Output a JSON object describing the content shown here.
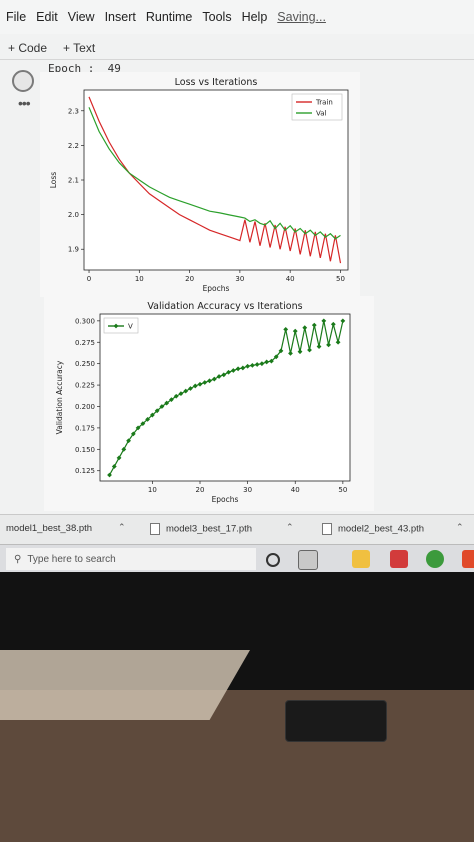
{
  "menu": {
    "items": [
      "File",
      "Edit",
      "View",
      "Insert",
      "Runtime",
      "Tools",
      "Help"
    ],
    "status": "Saving..."
  },
  "toolbar": {
    "code": "+ Code",
    "text": "+ Text"
  },
  "cell": {
    "output_text": "Epoch :  49"
  },
  "chart_data": [
    {
      "type": "line",
      "title": "Loss vs Iterations",
      "xlabel": "Epochs",
      "ylabel": "Loss",
      "xlim": [
        -1,
        51.5
      ],
      "ylim": [
        1.84,
        2.36
      ],
      "xticks": [
        0,
        10,
        20,
        30,
        40,
        50
      ],
      "yticks": [
        1.9,
        2.0,
        2.1,
        2.2,
        2.3
      ],
      "ytick_labels": [
        "1.9",
        "2.0",
        "2.1",
        "2.2",
        "2.3"
      ],
      "legend_position": "upper right",
      "grid": false,
      "series": [
        {
          "name": "Train",
          "color": "#d62728",
          "x": [
            0,
            2,
            4,
            6,
            8,
            10,
            12,
            14,
            16,
            18,
            20,
            22,
            24,
            26,
            28,
            29,
            30,
            31,
            32,
            33,
            34,
            35,
            36,
            37,
            38,
            39,
            40,
            41,
            42,
            43,
            44,
            45,
            46,
            47,
            48,
            49,
            50
          ],
          "y": [
            2.34,
            2.27,
            2.21,
            2.16,
            2.12,
            2.09,
            2.06,
            2.04,
            2.02,
            2.0,
            1.985,
            1.97,
            1.955,
            1.945,
            1.935,
            1.93,
            1.925,
            1.985,
            1.92,
            1.98,
            1.91,
            1.975,
            1.905,
            1.97,
            1.9,
            1.965,
            1.895,
            1.96,
            1.885,
            1.955,
            1.88,
            1.95,
            1.875,
            1.945,
            1.865,
            1.94,
            1.86
          ]
        },
        {
          "name": "Val",
          "color": "#2ca02c",
          "x": [
            0,
            2,
            4,
            6,
            8,
            10,
            12,
            14,
            16,
            18,
            20,
            22,
            24,
            26,
            28,
            29,
            30,
            31,
            32,
            33,
            34,
            35,
            36,
            37,
            38,
            39,
            40,
            41,
            42,
            43,
            44,
            45,
            46,
            47,
            48,
            49,
            50
          ],
          "y": [
            2.31,
            2.24,
            2.19,
            2.15,
            2.12,
            2.1,
            2.08,
            2.065,
            2.05,
            2.04,
            2.03,
            2.02,
            2.01,
            2.005,
            1.999,
            1.996,
            1.993,
            1.99,
            1.98,
            1.985,
            1.975,
            1.97,
            1.982,
            1.96,
            1.975,
            1.955,
            1.968,
            1.95,
            1.96,
            1.945,
            1.955,
            1.94,
            1.95,
            1.935,
            1.945,
            1.93,
            1.94
          ]
        }
      ]
    },
    {
      "type": "line",
      "title": "Validation Accuracy vs Iterations",
      "xlabel": "Epochs",
      "ylabel": "Validation Accuracy",
      "xlim": [
        -1,
        51.5
      ],
      "ylim": [
        0.113,
        0.308
      ],
      "xticks": [
        10,
        20,
        30,
        40,
        50
      ],
      "yticks": [
        0.125,
        0.15,
        0.175,
        0.2,
        0.225,
        0.25,
        0.275,
        0.3
      ],
      "ytick_labels": [
        "0.125",
        "0.150",
        "0.175",
        "0.200",
        "0.225",
        "0.250",
        "0.275",
        "0.300"
      ],
      "legend_position": "upper left",
      "grid": false,
      "series": [
        {
          "name": "V",
          "color": "#1a7a1a",
          "marker": "diamond",
          "x": [
            1,
            2,
            3,
            4,
            5,
            6,
            7,
            8,
            9,
            10,
            11,
            12,
            13,
            14,
            15,
            16,
            17,
            18,
            19,
            20,
            21,
            22,
            23,
            24,
            25,
            26,
            27,
            28,
            29,
            30,
            31,
            32,
            33,
            34,
            35,
            36,
            37,
            38,
            39,
            40,
            41,
            42,
            43,
            44,
            45,
            46,
            47,
            48,
            49,
            50
          ],
          "y": [
            0.12,
            0.13,
            0.14,
            0.15,
            0.16,
            0.168,
            0.175,
            0.18,
            0.185,
            0.19,
            0.195,
            0.2,
            0.204,
            0.208,
            0.212,
            0.215,
            0.218,
            0.221,
            0.224,
            0.226,
            0.228,
            0.23,
            0.232,
            0.235,
            0.237,
            0.24,
            0.242,
            0.244,
            0.245,
            0.247,
            0.248,
            0.249,
            0.25,
            0.252,
            0.253,
            0.258,
            0.265,
            0.29,
            0.262,
            0.288,
            0.264,
            0.292,
            0.266,
            0.295,
            0.27,
            0.3,
            0.272,
            0.296,
            0.275,
            0.3
          ]
        }
      ]
    }
  ],
  "downloads": [
    {
      "name": "model1_best_38.pth"
    },
    {
      "name": "model3_best_17.pth"
    },
    {
      "name": "model2_best_43.pth"
    }
  ],
  "taskbar": {
    "search_placeholder": "Type here to search"
  }
}
